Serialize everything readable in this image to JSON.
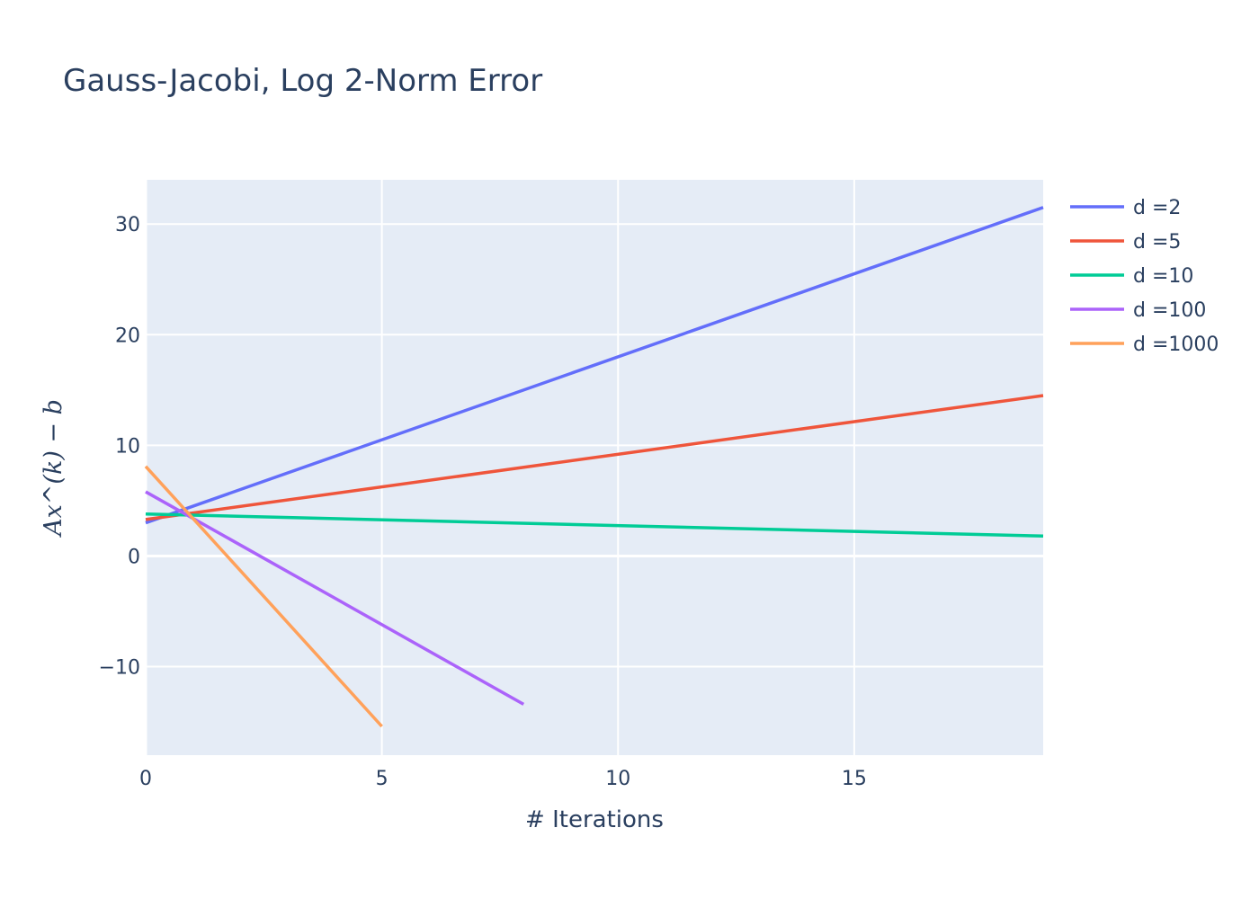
{
  "chart_data": {
    "type": "line",
    "title": "Gauss-Jacobi, Log 2-Norm Error",
    "xlabel": "# Iterations",
    "ylabel": "Ax^(k) − b",
    "xlim": [
      0,
      19
    ],
    "ylim": [
      -18,
      34
    ],
    "xticks": [
      0,
      5,
      10,
      15
    ],
    "yticks": [
      -10,
      0,
      10,
      20,
      30
    ],
    "grid": true,
    "legend_position": "top-right",
    "plot_background": "#e5ecf6",
    "series": [
      {
        "name": "d =2",
        "color": "#636efa",
        "x": [
          0,
          19
        ],
        "y": [
          3.0,
          31.5
        ]
      },
      {
        "name": "d =5",
        "color": "#ef553b",
        "x": [
          0,
          19
        ],
        "y": [
          3.3,
          14.5
        ]
      },
      {
        "name": "d =10",
        "color": "#00cc96",
        "x": [
          0,
          19
        ],
        "y": [
          3.8,
          1.8
        ]
      },
      {
        "name": "d =100",
        "color": "#ab63fa",
        "x": [
          0,
          8
        ],
        "y": [
          5.8,
          -13.4
        ]
      },
      {
        "name": "d =1000",
        "color": "#ffa15a",
        "x": [
          0,
          5
        ],
        "y": [
          8.1,
          -15.4
        ]
      }
    ]
  }
}
